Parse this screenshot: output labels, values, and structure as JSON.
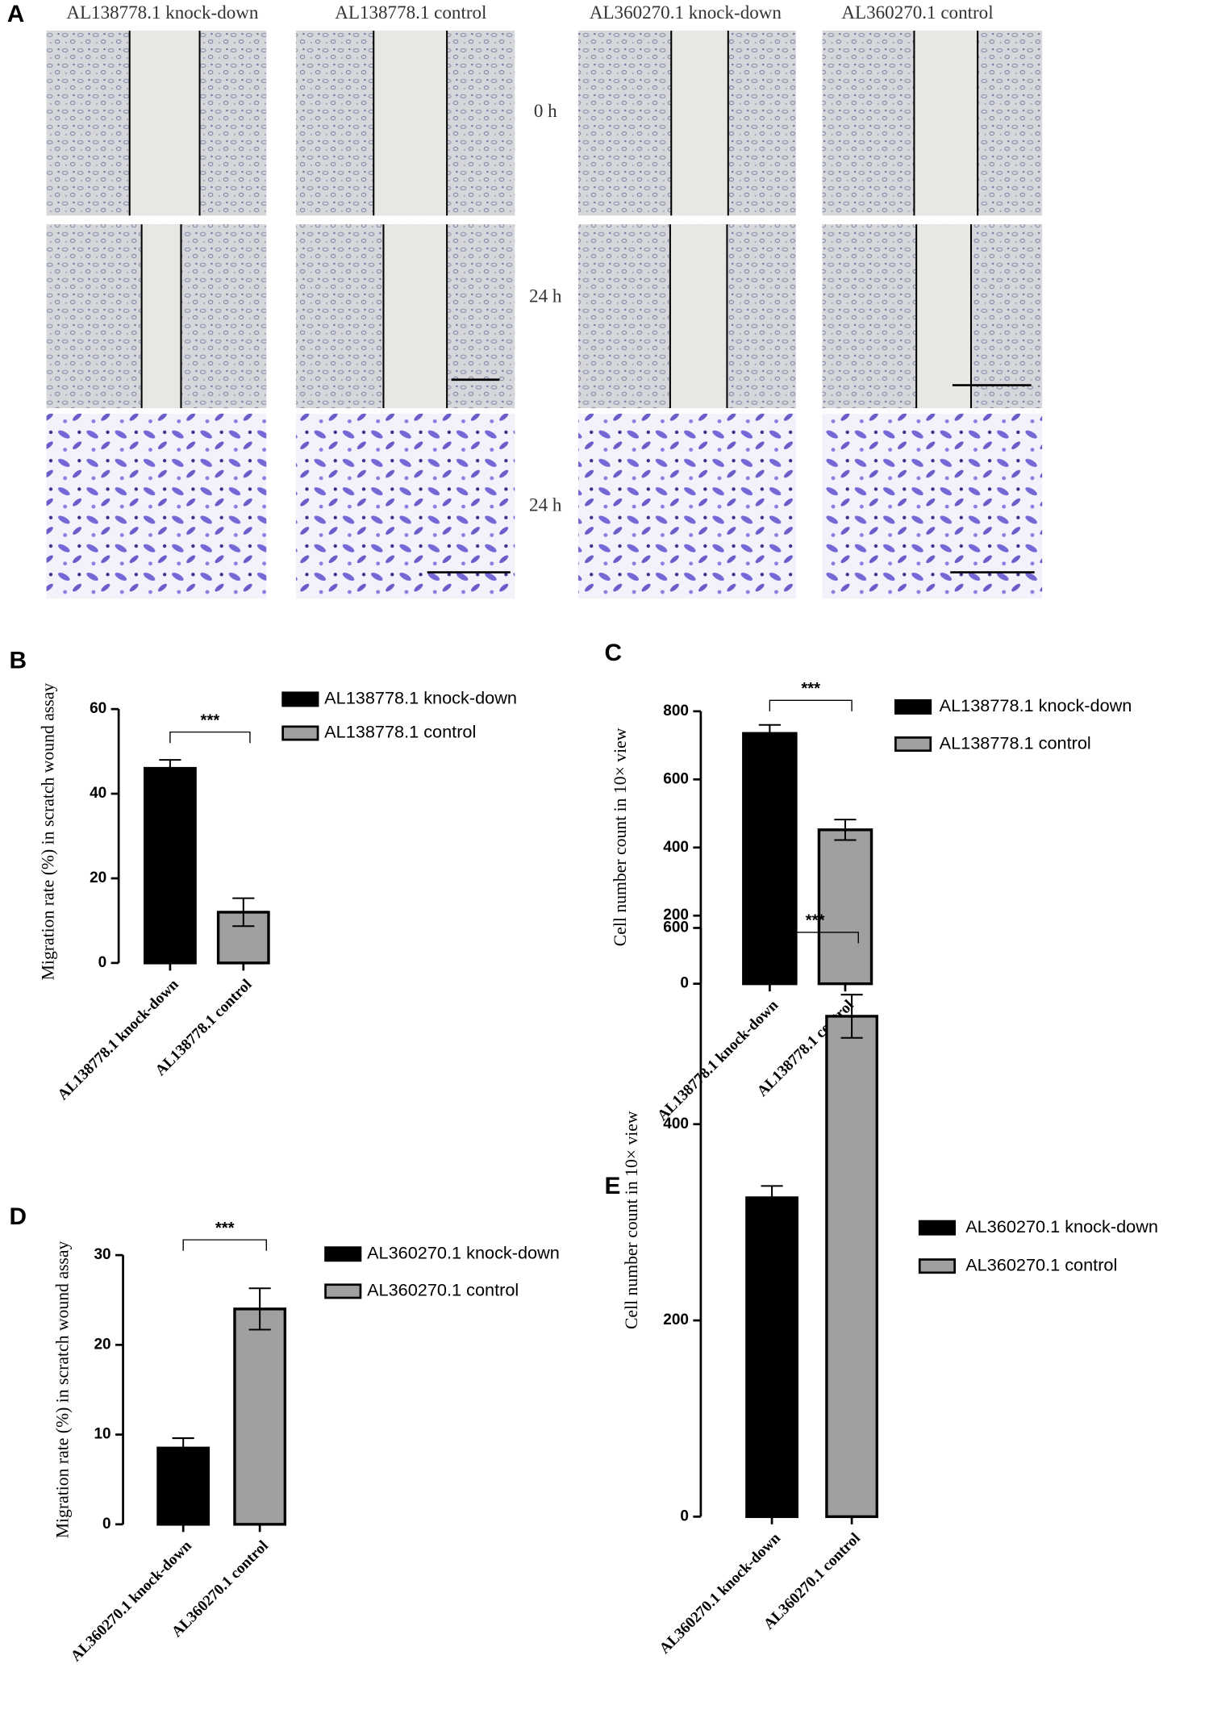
{
  "panel_a": {
    "label": "A",
    "columns": [
      "AL138778.1 knock-down",
      "AL138778.1 control",
      "AL360270.1 knock-down",
      "AL360270.1 control"
    ],
    "rows": [
      "0 h",
      "24 h",
      "24 h"
    ]
  },
  "chart_data": [
    {
      "type": "bar",
      "panel_label": "B",
      "ylabel": "Migration rate (%) in scratch wound assay",
      "categories": [
        "AL138778.1 knock-down",
        "AL138778.1 control"
      ],
      "values": [
        46,
        12
      ],
      "errors": [
        2,
        3.3
      ],
      "colors": [
        "#000000",
        "#a0a0a0"
      ],
      "ylim": [
        0,
        60
      ],
      "yticks": [
        0,
        20,
        40,
        60
      ],
      "significance": "***"
    },
    {
      "type": "bar",
      "panel_label": "C",
      "ylabel": "Cell number count in 10× view",
      "categories": [
        "AL138778.1 knock-down",
        "AL138778.1 control"
      ],
      "values": [
        735,
        452
      ],
      "errors": [
        25,
        30
      ],
      "colors": [
        "#000000",
        "#a0a0a0"
      ],
      "ylim": [
        0,
        800
      ],
      "yticks": [
        0,
        200,
        400,
        600,
        800
      ],
      "significance": "***"
    },
    {
      "type": "bar",
      "panel_label": "D",
      "ylabel": "Migration rate (%) in scratch wound assay",
      "categories": [
        "AL360270.1 knock-down",
        "AL360270.1 control"
      ],
      "values": [
        8.5,
        24
      ],
      "errors": [
        1.1,
        2.3
      ],
      "colors": [
        "#000000",
        "#a0a0a0"
      ],
      "ylim": [
        0,
        30
      ],
      "yticks": [
        0,
        10,
        20,
        30
      ],
      "significance": "***"
    },
    {
      "type": "bar",
      "panel_label": "E",
      "ylabel": "Cell number count in 10× view",
      "categories": [
        "AL360270.1 knock-down",
        "AL360270.1  control"
      ],
      "values": [
        325,
        510
      ],
      "errors": [
        12,
        22
      ],
      "colors": [
        "#000000",
        "#a0a0a0"
      ],
      "ylim": [
        0,
        600
      ],
      "yticks": [
        0,
        200,
        400,
        600
      ],
      "significance": "***"
    }
  ]
}
